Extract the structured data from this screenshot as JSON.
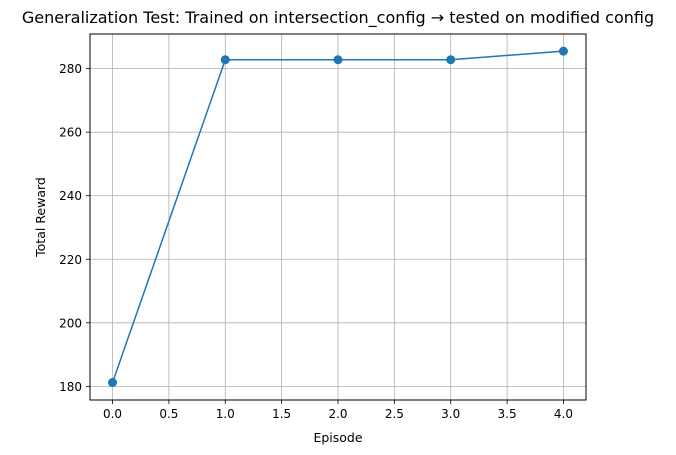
{
  "chart_data": {
    "type": "line",
    "title": "Generalization Test: Trained on intersection_config → tested on modified config",
    "xlabel": "Episode",
    "ylabel": "Total Reward",
    "xlim": [
      -0.2,
      4.2
    ],
    "ylim": [
      175.7,
      290.9
    ],
    "xticks": [
      0.0,
      0.5,
      1.0,
      1.5,
      2.0,
      2.5,
      3.0,
      3.5,
      4.0
    ],
    "xtick_labels": [
      "0.0",
      "0.5",
      "1.0",
      "1.5",
      "2.0",
      "2.5",
      "3.0",
      "3.5",
      "4.0"
    ],
    "yticks": [
      180,
      200,
      220,
      240,
      260,
      280
    ],
    "ytick_labels": [
      "180",
      "200",
      "220",
      "240",
      "260",
      "280"
    ],
    "grid": true,
    "series": [
      {
        "x": [
          0,
          1,
          2,
          3,
          4
        ],
        "y": [
          181.2,
          282.8,
          282.8,
          282.8,
          285.5
        ],
        "color": "#1f77b4",
        "marker": "circle"
      }
    ]
  }
}
